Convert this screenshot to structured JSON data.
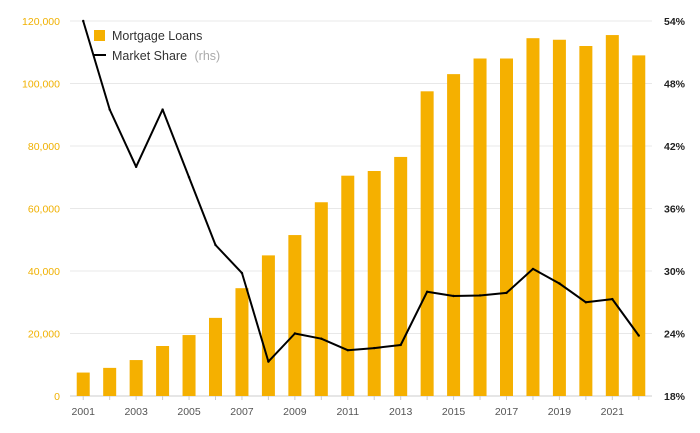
{
  "chart_data": {
    "type": "bar",
    "x": [
      "2001",
      "2002",
      "2003",
      "2004",
      "2005",
      "2006",
      "2007",
      "2008",
      "2009",
      "2010",
      "2011",
      "2012",
      "2013",
      "2014",
      "2015",
      "2016",
      "2017",
      "2018",
      "2019",
      "2020",
      "2021",
      "2022"
    ],
    "x_tick_labels": [
      "2001",
      "2003",
      "2005",
      "2007",
      "2009",
      "2011",
      "2013",
      "2015",
      "2017",
      "2019",
      "2021"
    ],
    "series": [
      {
        "name": "Mortgage Loans",
        "type": "bar",
        "axis": "left",
        "color": "#f5b000",
        "values": [
          7500,
          9000,
          11500,
          16000,
          19500,
          25000,
          34500,
          45000,
          51500,
          62000,
          70500,
          72000,
          76500,
          97500,
          103000,
          108000,
          108000,
          114500,
          114000,
          112000,
          115500,
          109000
        ]
      },
      {
        "name": "Market Share",
        "name_suffix": "(rhs)",
        "type": "line",
        "axis": "right",
        "color": "#000000",
        "values": [
          54.0,
          45.5,
          40.0,
          45.5,
          39.0,
          32.5,
          29.8,
          21.3,
          24.0,
          23.5,
          22.4,
          22.6,
          22.9,
          28.0,
          27.6,
          27.65,
          27.9,
          30.2,
          28.8,
          27.0,
          27.3,
          23.8
        ]
      }
    ],
    "y_left": {
      "ylim": [
        0,
        120000
      ],
      "ticks": [
        0,
        20000,
        40000,
        60000,
        80000,
        100000,
        120000
      ],
      "tick_labels": [
        "0",
        "20,000",
        "40,000",
        "60,000",
        "80,000",
        "100,000",
        "120,000"
      ],
      "color": "#f0b000"
    },
    "y_right": {
      "ylim": [
        18,
        54
      ],
      "ticks": [
        18,
        24,
        30,
        36,
        42,
        48,
        54
      ],
      "tick_labels": [
        "18%",
        "24%",
        "30%",
        "36%",
        "42%",
        "48%",
        "54%"
      ],
      "color": "#222222"
    },
    "grid": true,
    "legend": "top-left",
    "title": "",
    "xlabel": "",
    "ylabel": ""
  }
}
